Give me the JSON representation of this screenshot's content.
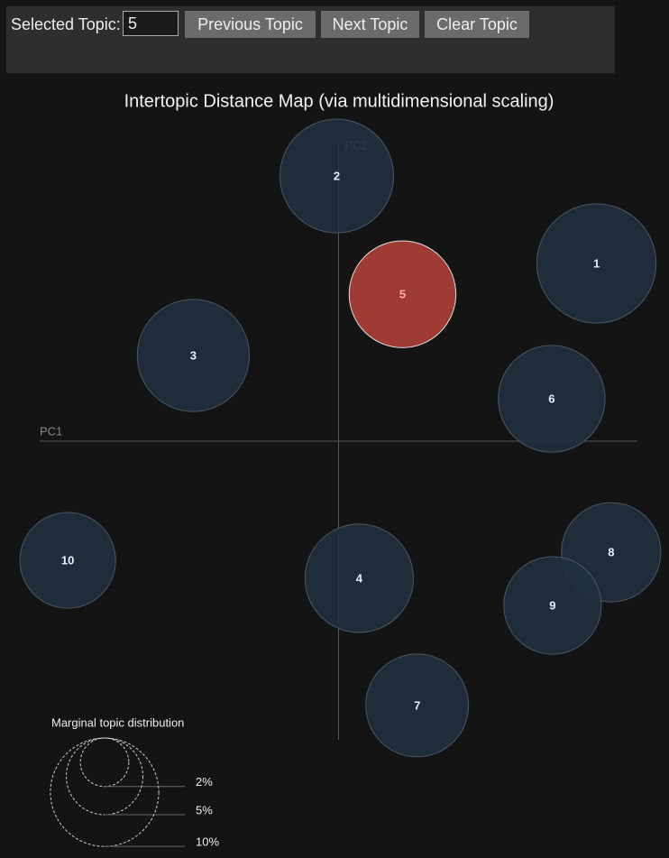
{
  "controls": {
    "selected_label": "Selected Topic:",
    "selected_topic": "5",
    "buttons": [
      "Previous Topic",
      "Next Topic",
      "Clear Topic"
    ]
  },
  "chart_data": {
    "type": "bubble",
    "title": "Intertopic Distance Map (via multidimensional scaling)",
    "x_label": "PC1",
    "y_label": "PC2",
    "labels": [
      "1",
      "2",
      "3",
      "4",
      "5",
      "6",
      "7",
      "8",
      "9",
      "10"
    ],
    "x": [
      0.863,
      -0.006,
      -0.486,
      0.069,
      0.214,
      0.713,
      0.263,
      0.912,
      0.716,
      -0.906
    ],
    "y": [
      0.595,
      0.888,
      0.287,
      -0.459,
      0.492,
      0.142,
      -0.885,
      -0.372,
      -0.55,
      -0.399
    ],
    "sizes": [
      12.1,
      11.0,
      10.7,
      10.0,
      9.7,
      9.7,
      9.0,
      8.4,
      8.1,
      7.8
    ],
    "xlim": [
      -1,
      1
    ],
    "ylim": [
      -1,
      1
    ],
    "color": "#213040",
    "highlight_color": "#a63d34",
    "size_legend": {
      "title": "Marginal topic distribution",
      "sizes": [
        {
          "value": 2,
          "label": "2%"
        },
        {
          "value": 5,
          "label": "5%"
        },
        {
          "value": 10,
          "label": "10%"
        }
      ]
    }
  }
}
